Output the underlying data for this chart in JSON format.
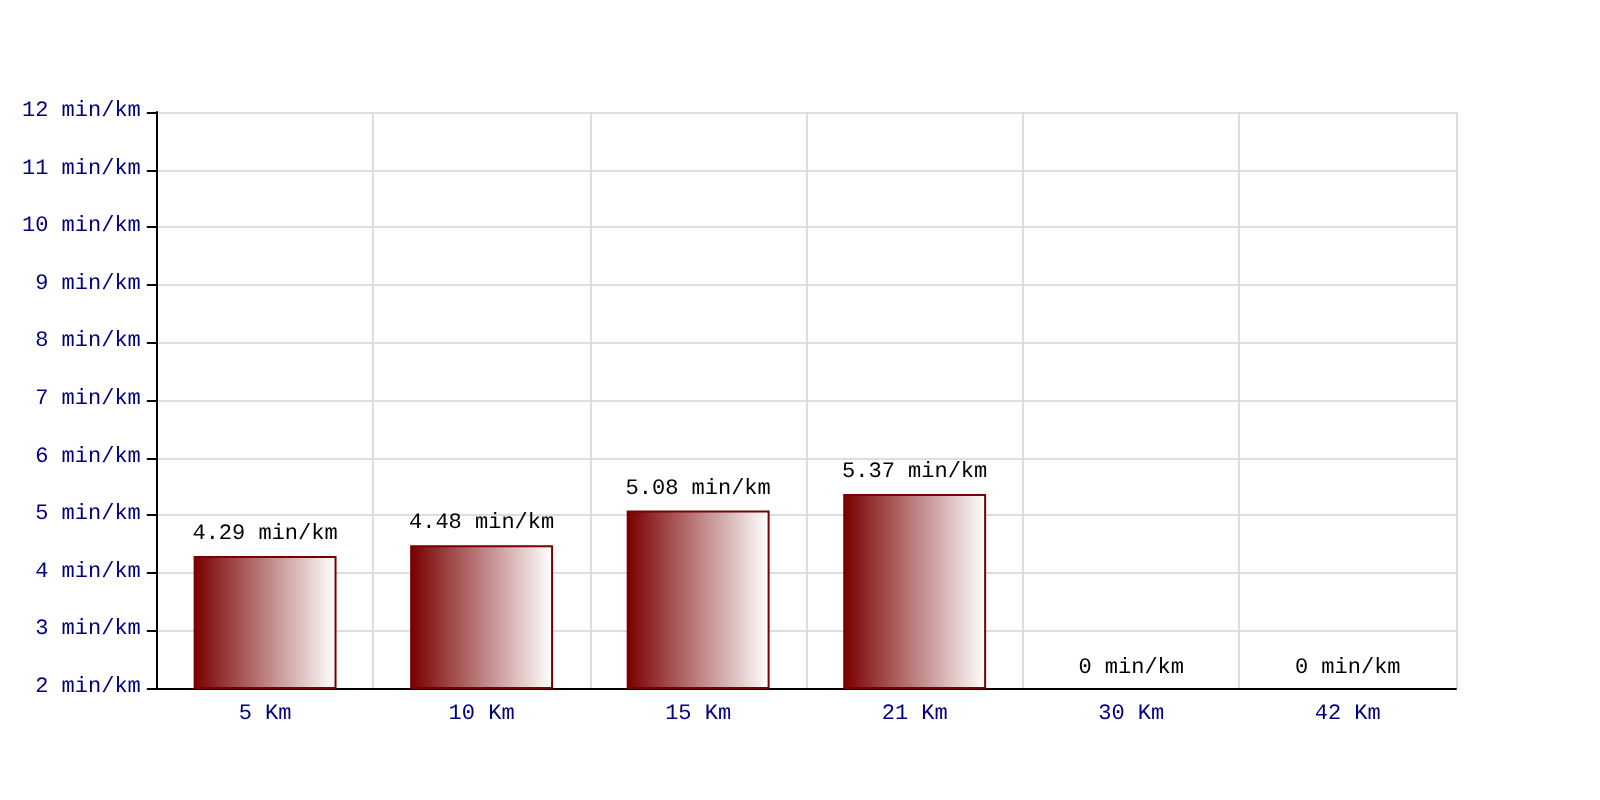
{
  "chart_data": {
    "type": "bar",
    "categories": [
      "5 Km",
      "10 Km",
      "15 Km",
      "21 Km",
      "30 Km",
      "42 Km"
    ],
    "values": [
      4.29,
      4.48,
      5.08,
      5.37,
      null,
      null
    ],
    "value_labels": [
      "4.29 min/km",
      "4.48 min/km",
      "5.08 min/km",
      "5.37 min/km",
      "0 min/km",
      "0 min/km"
    ],
    "color": "#7a0000",
    "ylim": [
      2,
      12
    ],
    "yticks": [
      {
        "value": 2,
        "label": "2 min/km"
      },
      {
        "value": 3,
        "label": "3 min/km"
      },
      {
        "value": 4,
        "label": "4 min/km"
      },
      {
        "value": 5,
        "label": "5 min/km"
      },
      {
        "value": 6,
        "label": "6 min/km"
      },
      {
        "value": 7,
        "label": "7 min/km"
      },
      {
        "value": 8,
        "label": "8 min/km"
      },
      {
        "value": 9,
        "label": "9 min/km"
      },
      {
        "value": 10,
        "label": "10 min/km"
      },
      {
        "value": 11,
        "label": "11 min/km"
      },
      {
        "value": 12,
        "label": "12 min/km"
      }
    ],
    "grid": true
  }
}
